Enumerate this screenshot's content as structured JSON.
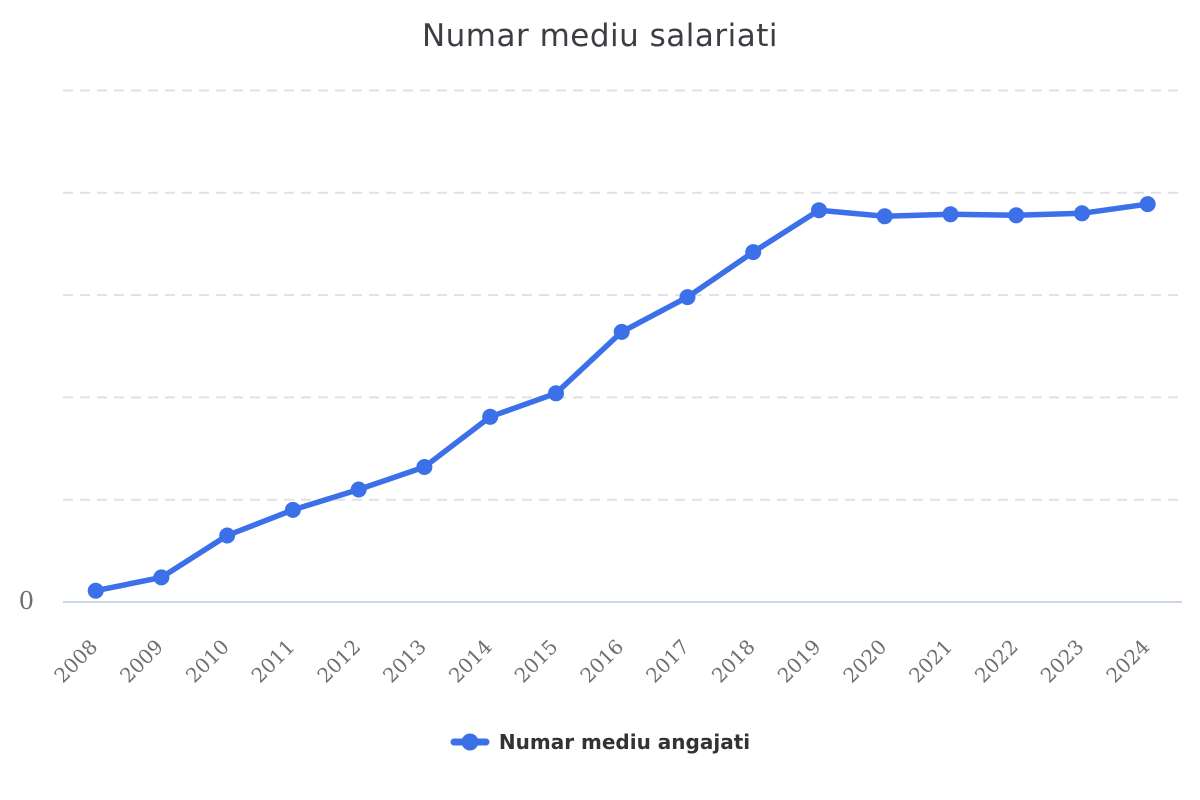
{
  "chart_data": {
    "type": "line",
    "title": "Numar mediu salariati",
    "categories": [
      "2008",
      "2009",
      "2010",
      "2011",
      "2012",
      "2013",
      "2014",
      "2015",
      "2016",
      "2017",
      "2018",
      "2019",
      "2020",
      "2021",
      "2022",
      "2023",
      "2024"
    ],
    "series": [
      {
        "name": "Numar mediu angajati",
        "color": "#3b70e8",
        "values": [
          11,
          24,
          65,
          90,
          110,
          132,
          181,
          204,
          264,
          298,
          342,
          383,
          377,
          379,
          378,
          380,
          389
        ]
      }
    ],
    "xlabel": "",
    "ylabel": "",
    "ylim": [
      0,
      530
    ],
    "y_axis": {
      "labeled_ticks": [
        "0"
      ],
      "gridline_interval": 100,
      "gridline_style": "dashed",
      "gridline_count": 5
    },
    "grid": "horizontal-only",
    "legend_position": "bottom",
    "x_tick_rotation_deg": -45
  },
  "colors": {
    "background": "#ffffff",
    "accent": "#3b70e8",
    "grid": "#e1e1e1",
    "axis_line": "#cbd6ea",
    "title_text": "#3b3f44",
    "tick_text": "#6f6f6f",
    "legend_text": "#333333"
  }
}
